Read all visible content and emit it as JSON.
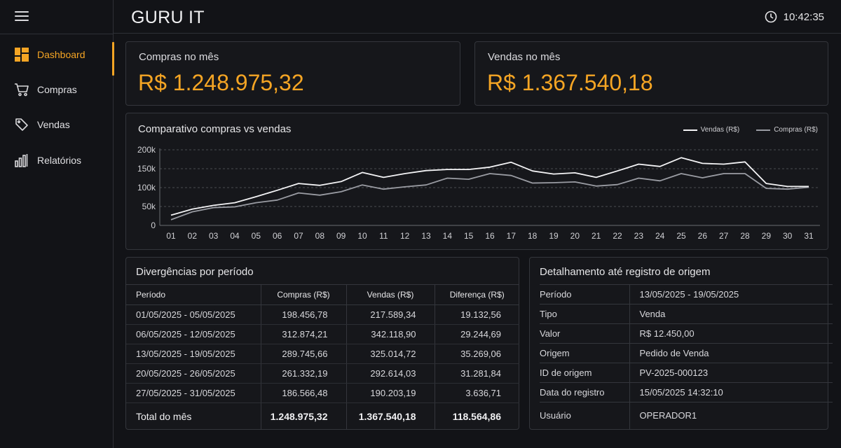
{
  "app": {
    "title": "GURU IT",
    "time": "10:42:35"
  },
  "sidebar": {
    "items": [
      {
        "label": "Dashboard",
        "icon": "dashboard-grid-icon",
        "active": true
      },
      {
        "label": "Compras",
        "icon": "cart-icon",
        "active": false
      },
      {
        "label": "Vendas",
        "icon": "tag-icon",
        "active": false
      },
      {
        "label": "Relatórios",
        "icon": "bar-report-icon",
        "active": false
      }
    ]
  },
  "colors": {
    "accent": "#f5a524",
    "vendas_line": "#f4f4f6",
    "compras_line": "#9a9ca3"
  },
  "kpis": {
    "compras": {
      "label": "Compras no mês",
      "value": "R$ 1.248.975,32"
    },
    "vendas": {
      "label": "Vendas no mês",
      "value": "R$ 1.367.540,18"
    }
  },
  "chart": {
    "title": "Comparativo compras vs vendas",
    "legend": {
      "vendas": "Vendas (R$)",
      "compras": "Compras (R$)"
    }
  },
  "chart_data": {
    "type": "line",
    "title": "Comparativo compras vs vendas",
    "x": [
      "01",
      "02",
      "03",
      "04",
      "05",
      "06",
      "07",
      "08",
      "09",
      "10",
      "11",
      "12",
      "13",
      "14",
      "15",
      "16",
      "17",
      "18",
      "19",
      "20",
      "21",
      "22",
      "23",
      "24",
      "25",
      "26",
      "27",
      "28",
      "29",
      "30",
      "31"
    ],
    "y_ticks": [
      "0",
      "50k",
      "100k",
      "150k",
      "200k"
    ],
    "ylim": [
      0,
      200000
    ],
    "grid": true,
    "legend_position": "top-right",
    "series": [
      {
        "name": "Vendas (R$)",
        "values": [
          27000,
          43000,
          53000,
          60000,
          76000,
          93000,
          111000,
          106000,
          116000,
          140000,
          127000,
          137000,
          145000,
          148000,
          148000,
          154000,
          167000,
          144000,
          136000,
          139000,
          127000,
          144000,
          162000,
          156000,
          179000,
          164000,
          162000,
          168000,
          111000,
          103000,
          103000
        ]
      },
      {
        "name": "Compras (R$)",
        "values": [
          15000,
          36000,
          47000,
          49000,
          60000,
          67000,
          86000,
          80000,
          89000,
          107000,
          96000,
          102000,
          107000,
          125000,
          122000,
          137000,
          132000,
          112000,
          113000,
          115000,
          104000,
          108000,
          125000,
          118000,
          137000,
          126000,
          137000,
          137000,
          98000,
          96000,
          101000
        ]
      }
    ]
  },
  "divergencias": {
    "title": "Divergências por período",
    "headers": [
      "Período",
      "Compras (R$)",
      "Vendas (R$)",
      "Diferença (R$)"
    ],
    "rows": [
      [
        "01/05/2025 - 05/05/2025",
        "198.456,78",
        "217.589,34",
        "19.132,56"
      ],
      [
        "06/05/2025 - 12/05/2025",
        "312.874,21",
        "342.118,90",
        "29.244,69"
      ],
      [
        "13/05/2025 - 19/05/2025",
        "289.745,66",
        "325.014,72",
        "35.269,06"
      ],
      [
        "20/05/2025 - 26/05/2025",
        "261.332,19",
        "292.614,03",
        "31.281,84"
      ],
      [
        "27/05/2025 - 31/05/2025",
        "186.566,48",
        "190.203,19",
        "3.636,71"
      ]
    ],
    "total": [
      "Total do mês",
      "1.248.975,32",
      "1.367.540,18",
      "118.564,86"
    ]
  },
  "detalhamento": {
    "title": "Detalhamento até registro de origem",
    "rows": [
      [
        "Período",
        "13/05/2025 - 19/05/2025"
      ],
      [
        "Tipo",
        "Venda"
      ],
      [
        "Valor",
        "R$ 12.450,00"
      ],
      [
        "Origem",
        "Pedido de Venda"
      ],
      [
        "ID de origem",
        "PV-2025-000123"
      ],
      [
        "Data do registro",
        "15/05/2025 14:32:10"
      ],
      [
        "Usuário",
        "OPERADOR1"
      ]
    ]
  }
}
